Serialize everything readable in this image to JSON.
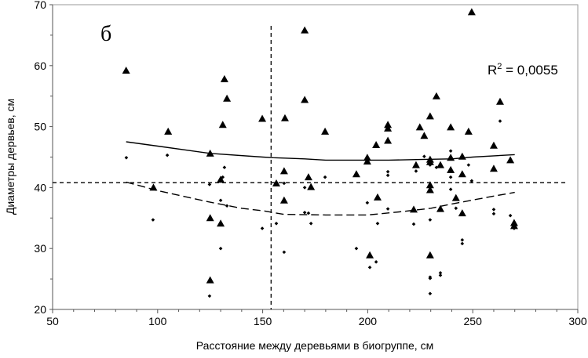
{
  "chart_data": {
    "type": "scatter",
    "panel_label": "б",
    "xlabel": "Расстояние между деревьями в биогруппе,  см",
    "ylabel": "Диаметры  дервьев,  см",
    "xlim": [
      50,
      300
    ],
    "ylim": [
      20,
      70
    ],
    "xticks": [
      50,
      100,
      150,
      200,
      250,
      300
    ],
    "yticks": [
      20,
      30,
      40,
      50,
      60,
      70
    ],
    "grid": false,
    "annotation": {
      "r2_prefix": "R",
      "r2_sup": "2",
      "r2_value": " = 0,0055"
    },
    "reference_lines": {
      "horizontal_y": 40.8,
      "vertical_x": 154
    },
    "series": [
      {
        "marker": "triangle",
        "points": [
          [
            85,
            59.2
          ],
          [
            98,
            40
          ],
          [
            105,
            49.2
          ],
          [
            125,
            45.6
          ],
          [
            125,
            24.8
          ],
          [
            125,
            35
          ],
          [
            131.8,
            57.8
          ],
          [
            133,
            54.6
          ],
          [
            131,
            50.3
          ],
          [
            130,
            34.1
          ],
          [
            130,
            41.3
          ],
          [
            149.8,
            51.3
          ],
          [
            156.5,
            40.7
          ],
          [
            160.2,
            42.7
          ],
          [
            160.2,
            37.9
          ],
          [
            170,
            65.8
          ],
          [
            170,
            54.4
          ],
          [
            160.6,
            51.4
          ],
          [
            171.8,
            41.7
          ],
          [
            173,
            40.1
          ],
          [
            179.7,
            49.2
          ],
          [
            194.6,
            42.2
          ],
          [
            199.8,
            44.9
          ],
          [
            199.8,
            44.3
          ],
          [
            201,
            28.9
          ],
          [
            204,
            47
          ],
          [
            204.7,
            38.4
          ],
          [
            209.6,
            50.3
          ],
          [
            209.6,
            49.7
          ],
          [
            209.6,
            47.7
          ],
          [
            221.9,
            36.4
          ],
          [
            223,
            43.7
          ],
          [
            224.8,
            49.9
          ],
          [
            226.9,
            48.5
          ],
          [
            229.7,
            51.7
          ],
          [
            229.7,
            44.6
          ],
          [
            229.7,
            44.2
          ],
          [
            229.7,
            40.4
          ],
          [
            229.7,
            39.6
          ],
          [
            229.7,
            28.9
          ],
          [
            232.7,
            55
          ],
          [
            234.6,
            43.7
          ],
          [
            234.6,
            36.5
          ],
          [
            239.5,
            49.9
          ],
          [
            239.5,
            44.9
          ],
          [
            239.5,
            42.9
          ],
          [
            242,
            38.3
          ],
          [
            245,
            45.1
          ],
          [
            245,
            42.2
          ],
          [
            245,
            35.8
          ],
          [
            248,
            49.2
          ],
          [
            249.5,
            68.8
          ],
          [
            260,
            46.9
          ],
          [
            260,
            43.1
          ],
          [
            263,
            54.1
          ],
          [
            267.9,
            44.5
          ],
          [
            269.7,
            34.2
          ],
          [
            269.7,
            33.7
          ]
        ]
      },
      {
        "marker": "diamond",
        "points": [
          [
            85.1,
            44.9
          ],
          [
            97.8,
            34.7
          ],
          [
            104.6,
            45.3
          ],
          [
            124.7,
            40.5
          ],
          [
            124.7,
            22.2
          ],
          [
            130,
            37.9
          ],
          [
            130,
            30
          ],
          [
            131.8,
            43.3
          ],
          [
            131,
            41.7
          ],
          [
            133,
            37
          ],
          [
            149.8,
            33.3
          ],
          [
            156.5,
            34.1
          ],
          [
            160.2,
            40.7
          ],
          [
            160.2,
            29.4
          ],
          [
            170,
            40
          ],
          [
            171.8,
            35.8
          ],
          [
            170,
            35.9
          ],
          [
            173,
            34.1
          ],
          [
            179.7,
            41.7
          ],
          [
            194.6,
            30
          ],
          [
            199.8,
            37.5
          ],
          [
            201,
            26.9
          ],
          [
            204,
            27.8
          ],
          [
            204.7,
            34.1
          ],
          [
            209.6,
            42.6
          ],
          [
            209.6,
            42
          ],
          [
            209.6,
            36.5
          ],
          [
            221.9,
            34
          ],
          [
            223,
            42.7
          ],
          [
            226.9,
            45.1
          ],
          [
            229.7,
            43.7
          ],
          [
            229.7,
            34.7
          ],
          [
            229.7,
            25.3
          ],
          [
            229.7,
            25.1
          ],
          [
            229.7,
            22.6
          ],
          [
            232.7,
            43.3
          ],
          [
            234.6,
            26
          ],
          [
            234.6,
            25.6
          ],
          [
            239.5,
            46
          ],
          [
            239.5,
            41.7
          ],
          [
            239.5,
            39.7
          ],
          [
            242,
            36.6
          ],
          [
            245,
            31.4
          ],
          [
            245,
            30.8
          ],
          [
            248,
            43.7
          ],
          [
            249.5,
            41.1
          ],
          [
            260,
            36.4
          ],
          [
            260,
            35.7
          ],
          [
            263,
            50.9
          ],
          [
            267.9,
            35.4
          ],
          [
            269.7,
            33.3
          ]
        ]
      }
    ],
    "trend_lines": [
      {
        "style": "solid",
        "points": [
          [
            85,
            47.5
          ],
          [
            100,
            46.8
          ],
          [
            125,
            45.6
          ],
          [
            150,
            45
          ],
          [
            155,
            44.9
          ],
          [
            170,
            44.7
          ],
          [
            180,
            44.5
          ],
          [
            210,
            44.5
          ],
          [
            225,
            44.6
          ],
          [
            240,
            44.7
          ],
          [
            250,
            45
          ],
          [
            270,
            45.4
          ]
        ]
      },
      {
        "style": "dashed",
        "points": [
          [
            85,
            40.9
          ],
          [
            100,
            39.5
          ],
          [
            125,
            37.6
          ],
          [
            140,
            36.6
          ],
          [
            150,
            36.2
          ],
          [
            160,
            35.6
          ],
          [
            180,
            35.5
          ],
          [
            200,
            35.5
          ],
          [
            215,
            36
          ],
          [
            230,
            36.6
          ],
          [
            240,
            37.3
          ],
          [
            260,
            38.6
          ],
          [
            270,
            39.2
          ]
        ]
      }
    ]
  }
}
